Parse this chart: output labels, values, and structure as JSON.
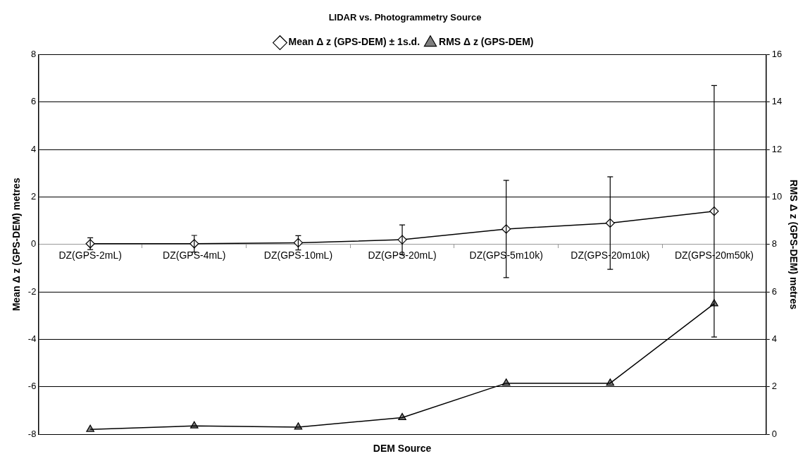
{
  "chart_data": {
    "type": "line",
    "title": "LIDAR vs. Photogrammetry Source",
    "xlabel": "DEM Source",
    "ylabel": "Mean Δ z (GPS-DEM) metres",
    "y2label": "RMS Δ z (GPS-DEM) metres",
    "categories": [
      "DZ(GPS-2mL)",
      "DZ(GPS-4mL)",
      "DZ(GPS-10mL)",
      "DZ(GPS-20mL)",
      "DZ(GPS-5m10k)",
      "DZ(GPS-20m10k)",
      "DZ(GPS-20m50k)"
    ],
    "series": [
      {
        "name": "Mean Δ z (GPS-DEM) ± 1s.d.",
        "color": "#000000",
        "marker": "diamond",
        "axis": "y",
        "values": [
          0.03,
          0.03,
          0.07,
          0.2,
          0.65,
          0.9,
          1.4
        ],
        "errors": [
          0.25,
          0.35,
          0.3,
          0.62,
          2.05,
          1.95,
          5.3
        ]
      },
      {
        "name": "RMS Δ z (GPS-DEM)",
        "color": "#000000",
        "marker": "triangle",
        "axis": "y2",
        "values": [
          0.2,
          0.35,
          0.3,
          0.7,
          2.15,
          2.15,
          5.5
        ]
      }
    ],
    "ylim": [
      -8,
      8
    ],
    "yticks": [
      -8,
      -6,
      -4,
      -2,
      0,
      2,
      4,
      6,
      8
    ],
    "y2lim": [
      0,
      16
    ],
    "y2ticks": [
      0,
      2,
      4,
      6,
      8,
      10,
      12,
      14,
      16
    ],
    "grid": "y",
    "legend": "top",
    "line_style": "solid"
  }
}
